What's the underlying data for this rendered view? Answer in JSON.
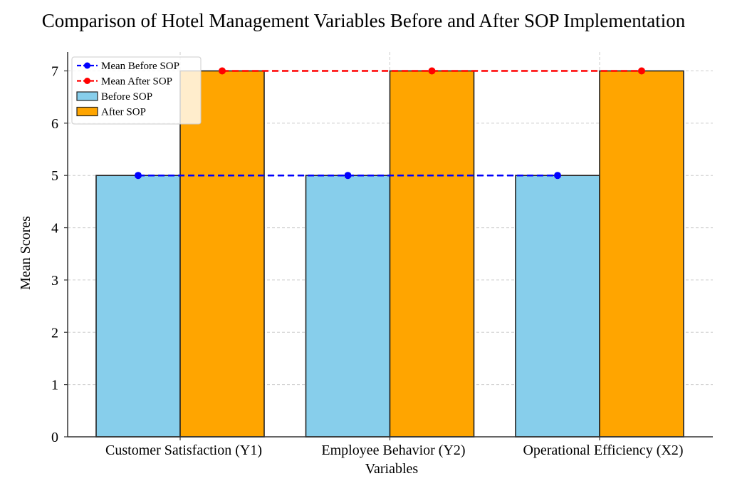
{
  "chart_data": {
    "type": "bar",
    "title": "Comparison of Hotel Management Variables Before and After SOP Implementation",
    "xlabel": "Variables",
    "ylabel": "Mean Scores",
    "categories": [
      "Customer Satisfaction (Y1)",
      "Employee Behavior (Y2)",
      "Operational Efficiency (X2)"
    ],
    "series": [
      {
        "name": "Before SOP",
        "kind": "bar",
        "values": [
          5,
          5,
          5
        ],
        "color": "#87ceeb"
      },
      {
        "name": "After SOP",
        "kind": "bar",
        "values": [
          7,
          7,
          7
        ],
        "color": "#ffa500"
      },
      {
        "name": "Mean Before SOP",
        "kind": "line",
        "style": "dashed",
        "marker": "circle",
        "values": [
          5,
          5,
          5
        ],
        "color": "#0000ff"
      },
      {
        "name": "Mean After SOP",
        "kind": "line",
        "style": "dashed",
        "marker": "circle",
        "values": [
          7,
          7,
          7
        ],
        "color": "#ff0000"
      }
    ],
    "ylim": [
      0,
      7
    ],
    "yticks": [
      0,
      1,
      2,
      3,
      4,
      5,
      6,
      7
    ],
    "grid": true,
    "legend_placement": "top-left",
    "legend": [
      "Mean Before SOP",
      "Mean After SOP",
      "Before SOP",
      "After SOP"
    ]
  }
}
